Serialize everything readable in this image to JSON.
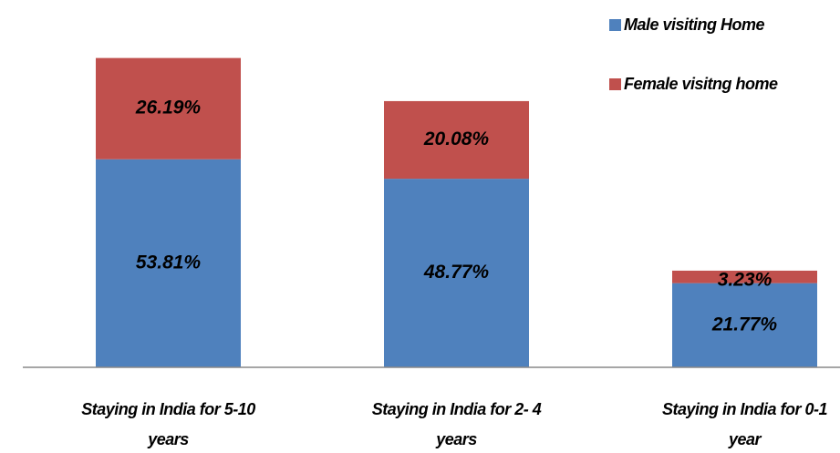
{
  "chart_data": {
    "type": "stacked_bar",
    "categories": [
      "Staying in India for 5-10 years",
      "Staying in India for 2- 4 years",
      "Staying in India for  0-1 year"
    ],
    "series": [
      {
        "name": "Male visiting Home",
        "color": "#4f81bd",
        "values": [
          53.81,
          48.77,
          21.77
        ],
        "value_labels": [
          "53.81%",
          "48.77%",
          "21.77%"
        ]
      },
      {
        "name": "Female visitng home",
        "color": "#c0504d",
        "values": [
          26.19,
          20.08,
          3.23
        ],
        "value_labels": [
          "26.19%",
          "20.08%",
          "3.23%"
        ]
      }
    ],
    "ylim": [
      0,
      95
    ]
  }
}
